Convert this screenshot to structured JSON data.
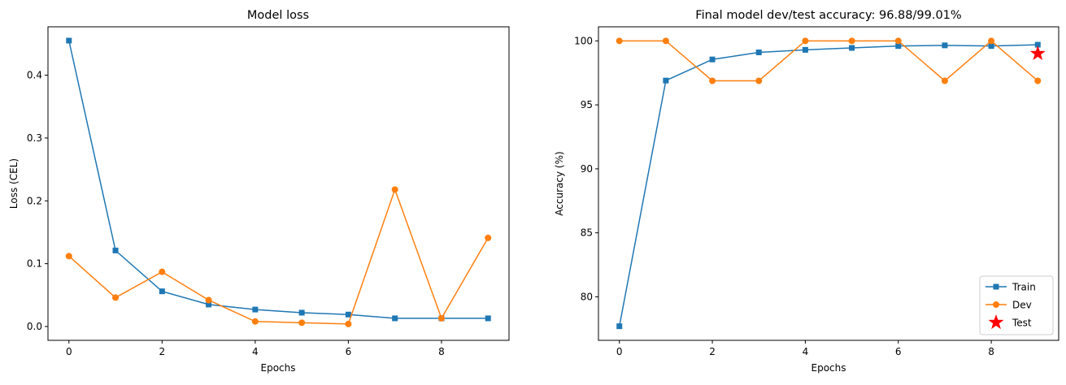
{
  "colors": {
    "train": "#1f77b4",
    "dev": "#ff7f0e",
    "test": "#ff0000"
  },
  "chart_data": [
    {
      "type": "line",
      "title": "Model loss",
      "xlabel": "Epochs",
      "ylabel": "Loss (CEL)",
      "xlim": [
        -0.45,
        9.45
      ],
      "ylim": [
        -0.022,
        0.477
      ],
      "xticks": [
        0,
        2,
        4,
        6,
        8
      ],
      "yticks": [
        0.0,
        0.1,
        0.2,
        0.3,
        0.4
      ],
      "ytick_labels": [
        "0.0",
        "0.1",
        "0.2",
        "0.3",
        "0.4"
      ],
      "grid": false,
      "x": [
        0,
        1,
        2,
        3,
        4,
        5,
        6,
        7,
        8,
        9
      ],
      "series": [
        {
          "key": "train",
          "marker": "square",
          "values": [
            0.455,
            0.121,
            0.056,
            0.035,
            0.027,
            0.022,
            0.019,
            0.013,
            0.013,
            0.013
          ]
        },
        {
          "key": "dev",
          "marker": "circle",
          "values": [
            0.112,
            0.046,
            0.087,
            0.042,
            0.008,
            0.006,
            0.004,
            0.218,
            0.013,
            0.141
          ]
        }
      ]
    },
    {
      "type": "line",
      "title": "Final model dev/test accuracy: 96.88/99.01%",
      "xlabel": "Epochs",
      "ylabel": "Accuracy (%)",
      "xlim": [
        -0.45,
        9.45
      ],
      "ylim": [
        76.6,
        101.1
      ],
      "xticks": [
        0,
        2,
        4,
        6,
        8
      ],
      "yticks": [
        80,
        85,
        90,
        95,
        100
      ],
      "ytick_labels": [
        "80",
        "85",
        "90",
        "95",
        "100"
      ],
      "grid": false,
      "legend_position": "lower-right",
      "x": [
        0,
        1,
        2,
        3,
        4,
        5,
        6,
        7,
        8,
        9
      ],
      "series": [
        {
          "key": "train",
          "name": "Train",
          "marker": "square",
          "values": [
            77.7,
            96.9,
            98.55,
            99.1,
            99.3,
            99.45,
            99.6,
            99.65,
            99.6,
            99.7
          ]
        },
        {
          "key": "dev",
          "name": "Dev",
          "marker": "circle",
          "values": [
            100,
            100,
            96.88,
            96.88,
            100,
            100,
            100,
            96.88,
            100,
            96.88
          ]
        }
      ],
      "points": [
        {
          "key": "test",
          "name": "Test",
          "marker": "star",
          "x": 9,
          "y": 99.01
        }
      ]
    }
  ]
}
